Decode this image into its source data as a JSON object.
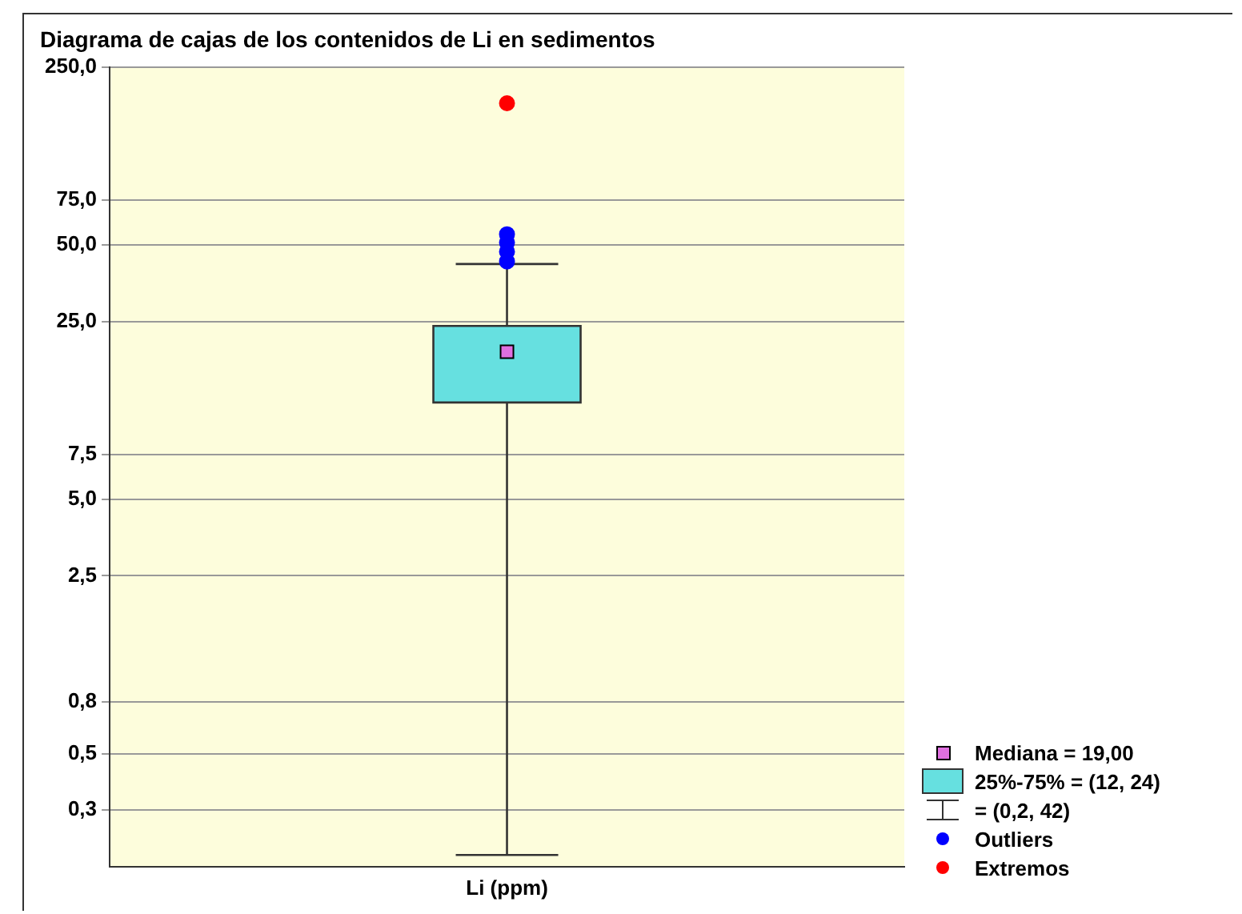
{
  "chart_data": {
    "type": "box",
    "title": "Diagrama de cajas de los contenidos de Li en sedimentos",
    "categories": [
      "Li (ppm)"
    ],
    "log": "y",
    "ylim": [
      0.18,
      250
    ],
    "yticks": [
      {
        "value": 0.3,
        "label": "0,3"
      },
      {
        "value": 0.5,
        "label": "0,5"
      },
      {
        "value": 0.8,
        "label": "0,8"
      },
      {
        "value": 2.5,
        "label": "2,5"
      },
      {
        "value": 5,
        "label": "5,0"
      },
      {
        "value": 7.5,
        "label": "7,5"
      },
      {
        "value": 25,
        "label": "25,0"
      },
      {
        "value": 50,
        "label": "50,0"
      },
      {
        "value": 75,
        "label": "75,0"
      },
      {
        "value": 250,
        "label": "250,0"
      }
    ],
    "grid": "y",
    "legend": "bottom right",
    "annotations": [
      "Mediana = 19,00",
      "= (0,2, 42)"
    ],
    "series": [
      {
        "name": "25%-75% = (12, 24)",
        "color": "#66e0e0",
        "boxes": [
          {
            "low": 0.2,
            "q1": 12,
            "median": 19,
            "q3": 24,
            "high": 42
          }
        ]
      },
      {
        "type": "scatter",
        "name": "Outliers",
        "color": "#0000ff",
        "marker": "circle",
        "x": [
          "Li (ppm)",
          "Li (ppm)",
          "Li (ppm)",
          "Li (ppm)"
        ],
        "values": [
          43,
          47,
          51,
          55
        ]
      },
      {
        "type": "scatter",
        "name": "Extremos",
        "color": "#ff0000",
        "marker": "circle",
        "x": [
          "Li (ppm)"
        ],
        "values": [
          180
        ]
      }
    ]
  }
}
